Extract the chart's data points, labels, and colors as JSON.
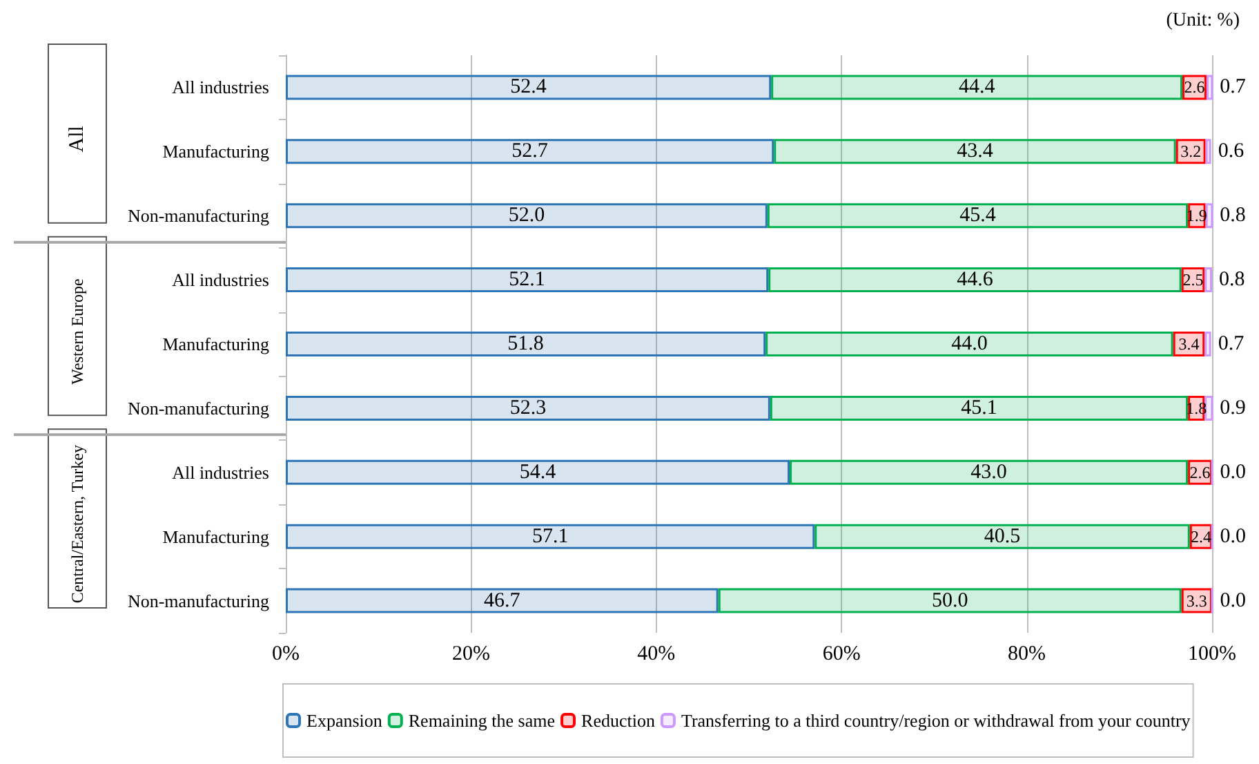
{
  "chart_data": {
    "type": "bar",
    "orientation": "horizontal",
    "stacked": true,
    "categories": [
      "All industries",
      "Manufacturing",
      "Non-manufacturing",
      "All industries",
      "Manufacturing",
      "Non-manufacturing",
      "All industries",
      "Manufacturing",
      "Non-manufacturing"
    ],
    "series": [
      {
        "name": "Expansion",
        "color": "#2e75b6",
        "values": [
          52.4,
          52.7,
          52.0,
          52.1,
          51.8,
          52.3,
          54.4,
          57.1,
          46.7
        ],
        "value_labels": [
          "52.4",
          "52.7",
          "52.0",
          "52.1",
          "51.8",
          "52.3",
          "54.4",
          "57.1",
          "46.7"
        ]
      },
      {
        "name": "Remaining the same",
        "color": "#00b050",
        "values": [
          44.4,
          43.4,
          45.4,
          44.6,
          44.0,
          45.1,
          43.0,
          40.5,
          50.0
        ],
        "value_labels": [
          "44.4",
          "43.4",
          "45.4",
          "44.6",
          "44.0",
          "45.1",
          "43.0",
          "40.5",
          "50.0"
        ]
      },
      {
        "name": "Reduction",
        "color": "#ff0000",
        "values": [
          2.6,
          3.2,
          1.9,
          2.5,
          3.4,
          1.8,
          2.6,
          2.4,
          3.3
        ],
        "value_labels": [
          "2.6",
          "3.2",
          "1.9",
          "2.5",
          "3.4",
          "1.8",
          "2.6",
          "2.4",
          "3.3"
        ]
      },
      {
        "name": "Transferring to a third country/region or withdrawal from your country",
        "color": "#cc99ff",
        "values": [
          0.7,
          0.6,
          0.8,
          0.8,
          0.7,
          0.9,
          0.0,
          0.0,
          0.0
        ],
        "value_labels": [
          "0.7",
          "0.6",
          "0.8",
          "0.8",
          "0.7",
          "0.9",
          "0.0",
          "0.0",
          "0.0"
        ]
      }
    ],
    "xlim": [
      0,
      100
    ],
    "xticks": [
      {
        "value": 0,
        "label": "0%"
      },
      {
        "value": 20,
        "label": "20%"
      },
      {
        "value": 40,
        "label": "40%"
      },
      {
        "value": 60,
        "label": "60%"
      },
      {
        "value": 80,
        "label": "80%"
      },
      {
        "value": 100,
        "label": "100%"
      }
    ],
    "grid": "x",
    "legend": "bottom",
    "annotations": [
      "(Unit: %)",
      "All",
      "Western Europe",
      "Central/Eastern, Turkey"
    ]
  }
}
